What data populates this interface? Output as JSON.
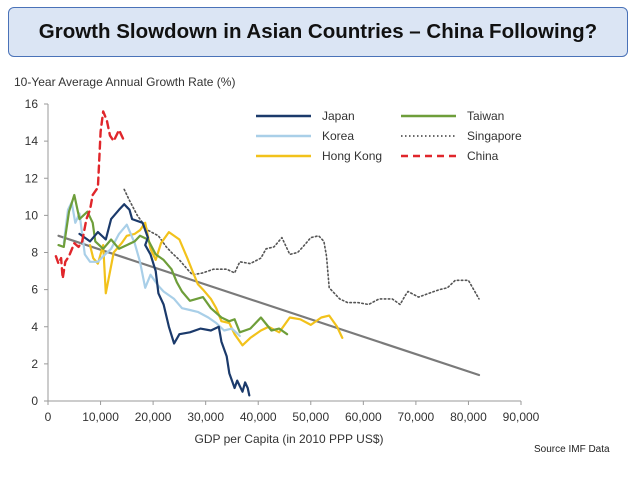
{
  "slide": {
    "title": "Growth Slowdown in Asian Countries – China Following?",
    "source": "Source IMF Data"
  },
  "chart_data": {
    "type": "line",
    "title": "",
    "ylabel": "10-Year Average Annual Growth Rate (%)",
    "xlabel": "GDP per Capita (in 2010 PPP US$)",
    "xlim": [
      0,
      90000
    ],
    "ylim": [
      0,
      16
    ],
    "x_ticks": [
      0,
      10000,
      20000,
      30000,
      40000,
      50000,
      60000,
      70000,
      80000,
      90000
    ],
    "x_tick_labels": [
      "0",
      "10,000",
      "20,000",
      "30,000",
      "40,000",
      "50,000",
      "60,000",
      "70,000",
      "80,000",
      "90,000"
    ],
    "y_ticks": [
      0,
      2,
      4,
      6,
      8,
      10,
      12,
      14,
      16
    ],
    "y_tick_labels": [
      "0",
      "2",
      "4",
      "6",
      "8",
      "10",
      "12",
      "14",
      "16"
    ],
    "grid": false,
    "legend_position": "top-right",
    "series": [
      {
        "name": "Japan",
        "color": "#1b3a6b",
        "dash": "solid",
        "points": [
          [
            6000,
            9.0
          ],
          [
            8000,
            8.6
          ],
          [
            9500,
            9.1
          ],
          [
            11000,
            8.7
          ],
          [
            12000,
            9.8
          ],
          [
            13500,
            10.3
          ],
          [
            14500,
            10.6
          ],
          [
            15500,
            10.3
          ],
          [
            16000,
            9.8
          ],
          [
            18000,
            9.6
          ],
          [
            19000,
            8.8
          ],
          [
            18500,
            8.4
          ],
          [
            19500,
            7.9
          ],
          [
            20500,
            7.0
          ],
          [
            21000,
            5.8
          ],
          [
            22000,
            5.2
          ],
          [
            23000,
            4.0
          ],
          [
            24000,
            3.1
          ],
          [
            25000,
            3.6
          ],
          [
            27000,
            3.7
          ],
          [
            29000,
            3.9
          ],
          [
            31000,
            3.8
          ],
          [
            32500,
            4.0
          ],
          [
            33000,
            3.2
          ],
          [
            34000,
            2.4
          ],
          [
            34500,
            1.5
          ],
          [
            35500,
            0.7
          ],
          [
            36000,
            1.1
          ],
          [
            37000,
            0.5
          ],
          [
            37500,
            1.0
          ],
          [
            38000,
            0.7
          ],
          [
            38300,
            0.3
          ]
        ]
      },
      {
        "name": "Korea",
        "color": "#a9cfe8",
        "dash": "solid",
        "points": [
          [
            3000,
            8.5
          ],
          [
            3800,
            10.3
          ],
          [
            4500,
            10.7
          ],
          [
            5200,
            9.6
          ],
          [
            6000,
            10.1
          ],
          [
            7000,
            7.9
          ],
          [
            8000,
            7.5
          ],
          [
            9500,
            7.5
          ],
          [
            10500,
            7.8
          ],
          [
            12000,
            8.2
          ],
          [
            13500,
            9.0
          ],
          [
            15000,
            9.5
          ],
          [
            16500,
            8.5
          ],
          [
            17500,
            7.5
          ],
          [
            18500,
            6.1
          ],
          [
            19500,
            6.8
          ],
          [
            21000,
            6.2
          ],
          [
            22000,
            5.9
          ],
          [
            24000,
            5.5
          ],
          [
            25500,
            5.0
          ],
          [
            27000,
            4.9
          ],
          [
            28500,
            4.8
          ],
          [
            30500,
            4.5
          ],
          [
            32000,
            4.2
          ],
          [
            33500,
            3.8
          ],
          [
            35000,
            3.9
          ],
          [
            36500,
            3.5
          ]
        ]
      },
      {
        "name": "Hong Kong",
        "color": "#f2c21b",
        "dash": "solid",
        "points": [
          [
            8000,
            8.4
          ],
          [
            8600,
            7.7
          ],
          [
            9500,
            7.4
          ],
          [
            10500,
            8.4
          ],
          [
            11000,
            5.8
          ],
          [
            12500,
            8.0
          ],
          [
            14000,
            8.5
          ],
          [
            15000,
            8.9
          ],
          [
            16500,
            9.0
          ],
          [
            17500,
            9.2
          ],
          [
            18500,
            9.6
          ],
          [
            19500,
            8.2
          ],
          [
            20500,
            7.6
          ],
          [
            21500,
            8.5
          ],
          [
            23000,
            9.1
          ],
          [
            25000,
            8.7
          ],
          [
            26500,
            7.7
          ],
          [
            27500,
            7.0
          ],
          [
            28500,
            6.3
          ],
          [
            29500,
            6.0
          ],
          [
            31000,
            5.5
          ],
          [
            32000,
            5.0
          ],
          [
            33000,
            4.3
          ],
          [
            34500,
            4.2
          ],
          [
            35500,
            3.6
          ],
          [
            37000,
            3.0
          ],
          [
            38500,
            3.4
          ],
          [
            40500,
            3.8
          ],
          [
            42000,
            4.0
          ],
          [
            44000,
            3.7
          ],
          [
            46000,
            4.5
          ],
          [
            48000,
            4.4
          ],
          [
            50000,
            4.1
          ],
          [
            52000,
            4.5
          ],
          [
            53500,
            4.6
          ],
          [
            55000,
            4.0
          ],
          [
            56000,
            3.4
          ]
        ]
      },
      {
        "name": "Taiwan",
        "color": "#6e9e3a",
        "dash": "solid",
        "points": [
          [
            2000,
            8.4
          ],
          [
            3000,
            8.3
          ],
          [
            4000,
            10.2
          ],
          [
            5000,
            11.1
          ],
          [
            6000,
            9.8
          ],
          [
            7500,
            10.2
          ],
          [
            8500,
            9.6
          ],
          [
            9000,
            8.6
          ],
          [
            10500,
            8.2
          ],
          [
            12000,
            8.7
          ],
          [
            13500,
            8.2
          ],
          [
            15000,
            8.4
          ],
          [
            16500,
            8.6
          ],
          [
            17500,
            8.9
          ],
          [
            19000,
            8.7
          ],
          [
            20500,
            7.9
          ],
          [
            22000,
            7.6
          ],
          [
            23500,
            7.1
          ],
          [
            24500,
            6.4
          ],
          [
            25500,
            5.9
          ],
          [
            27000,
            5.4
          ],
          [
            29500,
            5.6
          ],
          [
            31000,
            5.0
          ],
          [
            33000,
            4.5
          ],
          [
            34500,
            4.3
          ],
          [
            35500,
            4.4
          ],
          [
            36500,
            3.7
          ],
          [
            38500,
            3.9
          ],
          [
            40500,
            4.5
          ],
          [
            42500,
            3.8
          ],
          [
            44000,
            3.9
          ],
          [
            45500,
            3.6
          ]
        ]
      },
      {
        "name": "Singapore",
        "color": "#555555",
        "dash": "dotted",
        "points": [
          [
            14500,
            11.4
          ],
          [
            15500,
            10.8
          ],
          [
            17000,
            10.0
          ],
          [
            19000,
            9.2
          ],
          [
            21000,
            8.9
          ],
          [
            22500,
            8.3
          ],
          [
            23500,
            8.0
          ],
          [
            25000,
            7.6
          ],
          [
            26500,
            7.1
          ],
          [
            27500,
            6.8
          ],
          [
            29500,
            6.9
          ],
          [
            31500,
            7.1
          ],
          [
            34000,
            7.1
          ],
          [
            35500,
            6.9
          ],
          [
            36500,
            7.5
          ],
          [
            38500,
            7.4
          ],
          [
            40500,
            7.7
          ],
          [
            41500,
            8.2
          ],
          [
            43000,
            8.3
          ],
          [
            44500,
            8.8
          ],
          [
            46000,
            7.9
          ],
          [
            47500,
            8.0
          ],
          [
            48500,
            8.3
          ],
          [
            50000,
            8.8
          ],
          [
            51500,
            8.9
          ],
          [
            52500,
            8.6
          ],
          [
            53000,
            7.8
          ],
          [
            53500,
            6.1
          ],
          [
            55500,
            5.5
          ],
          [
            57000,
            5.3
          ],
          [
            59000,
            5.3
          ],
          [
            61000,
            5.2
          ],
          [
            63000,
            5.5
          ],
          [
            65500,
            5.5
          ],
          [
            67000,
            5.2
          ],
          [
            68000,
            5.7
          ],
          [
            68500,
            5.9
          ],
          [
            70500,
            5.6
          ],
          [
            72500,
            5.8
          ],
          [
            74500,
            6.0
          ],
          [
            76000,
            6.1
          ],
          [
            77500,
            6.5
          ],
          [
            79000,
            6.5
          ],
          [
            80000,
            6.5
          ],
          [
            81000,
            6.0
          ],
          [
            82000,
            5.5
          ]
        ]
      },
      {
        "name": "China",
        "color": "#e0262b",
        "dash": "dashed",
        "points": [
          [
            1500,
            7.8
          ],
          [
            2000,
            7.4
          ],
          [
            2500,
            7.7
          ],
          [
            2800,
            6.6
          ],
          [
            3300,
            7.5
          ],
          [
            4000,
            7.8
          ],
          [
            5000,
            8.5
          ],
          [
            5800,
            8.3
          ],
          [
            6500,
            8.6
          ],
          [
            7300,
            9.8
          ],
          [
            8000,
            10.3
          ],
          [
            8500,
            11.1
          ],
          [
            9000,
            11.3
          ],
          [
            9500,
            11.5
          ],
          [
            10000,
            14.5
          ],
          [
            10500,
            15.6
          ],
          [
            11200,
            15.1
          ],
          [
            11800,
            14.3
          ],
          [
            12500,
            14.0
          ],
          [
            13500,
            14.6
          ],
          [
            14500,
            14.0
          ]
        ]
      },
      {
        "name": "",
        "color": "#7a7a7a",
        "dash": "solid",
        "points": [
          [
            2000,
            8.9
          ],
          [
            82000,
            1.4
          ]
        ]
      }
    ]
  }
}
